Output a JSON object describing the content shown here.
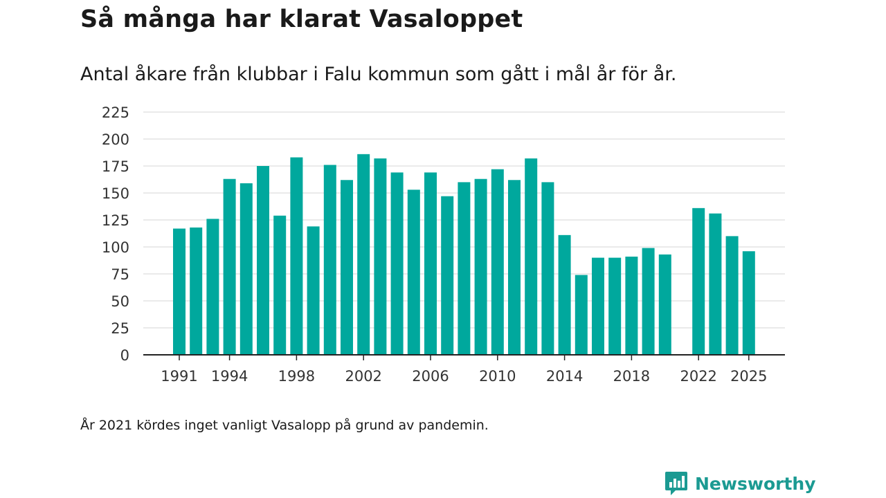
{
  "header": {
    "title": "Så många har klarat Vasaloppet",
    "subtitle": "Antal åkare från klubbar i Falu kommun som gått i mål år för år."
  },
  "footer": {
    "note": "År 2021 kördes inget vanligt Vasalopp på grund av pandemin.",
    "brand": "Newsworthy"
  },
  "colors": {
    "bar": "#00a89d",
    "grid": "#dddddd",
    "axis": "#222222",
    "brand": "#1b9a92"
  },
  "icons": {
    "logo": "newsworthy-logo-icon"
  },
  "chart_data": {
    "type": "bar",
    "title": "Så många har klarat Vasaloppet",
    "subtitle": "Antal åkare från klubbar i Falu kommun som gått i mål år för år.",
    "xlabel": "",
    "ylabel": "",
    "ylim": [
      0,
      225
    ],
    "yticks": [
      0,
      25,
      50,
      75,
      100,
      125,
      150,
      175,
      200,
      225
    ],
    "xticks": [
      1991,
      1994,
      1998,
      2002,
      2006,
      2010,
      2014,
      2018,
      2022,
      2025
    ],
    "grid": true,
    "x": [
      1991,
      1992,
      1993,
      1994,
      1995,
      1996,
      1997,
      1998,
      1999,
      2000,
      2001,
      2002,
      2003,
      2004,
      2005,
      2006,
      2007,
      2008,
      2009,
      2010,
      2011,
      2012,
      2013,
      2014,
      2015,
      2016,
      2017,
      2018,
      2019,
      2020,
      2021,
      2022,
      2023,
      2024,
      2025
    ],
    "values": [
      117,
      118,
      126,
      163,
      159,
      175,
      129,
      183,
      119,
      176,
      162,
      186,
      182,
      169,
      153,
      169,
      147,
      160,
      163,
      172,
      162,
      182,
      160,
      111,
      74,
      90,
      90,
      91,
      99,
      93,
      null,
      136,
      131,
      110,
      96
    ]
  }
}
